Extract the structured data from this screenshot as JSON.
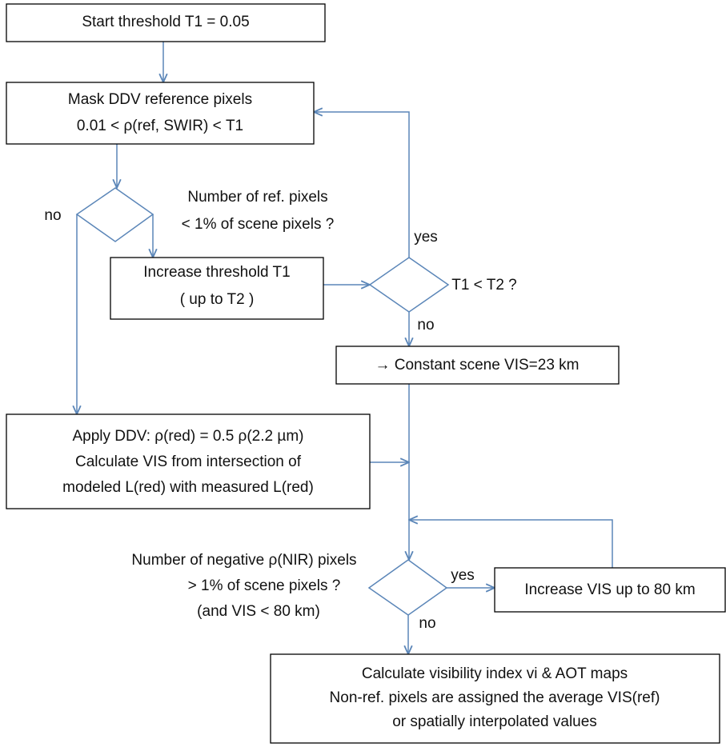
{
  "nodes": [
    {
      "lines": [
        "Start threshold T1 = 0.05"
      ]
    },
    {
      "lines": [
        "Mask DDV reference pixels",
        "0.01 < ρ(ref, SWIR) < T1"
      ]
    },
    {
      "lines": [
        "Number of ref. pixels",
        "<  1%  of scene pixels ?"
      ]
    },
    {
      "lines": [
        "Increase threshold T1",
        "( up to  T2 )"
      ]
    },
    {
      "lines": [
        "T1 < T2 ?"
      ]
    },
    {
      "lines": [
        "→ Constant scene VIS=23 km"
      ]
    },
    {
      "lines": [
        "Apply DDV: ρ(red) = 0.5 ρ(2.2 µm)",
        "Calculate VIS from intersection of",
        "modeled  L(red) with measured L(red)"
      ]
    },
    {
      "lines": [
        "Number of negative ρ(NIR) pixels",
        "> 1% of scene pixels ?",
        "(and VIS < 80 km)"
      ]
    },
    {
      "lines": [
        "Increase VIS up to 80 km"
      ]
    },
    {
      "lines": [
        "Calculate visibility index  vi  &  AOT maps",
        "Non-ref. pixels are assigned the average VIS(ref)",
        "or spatially interpolated values"
      ]
    }
  ],
  "labels": [
    "no",
    "yes",
    "no",
    "yes",
    "no"
  ]
}
